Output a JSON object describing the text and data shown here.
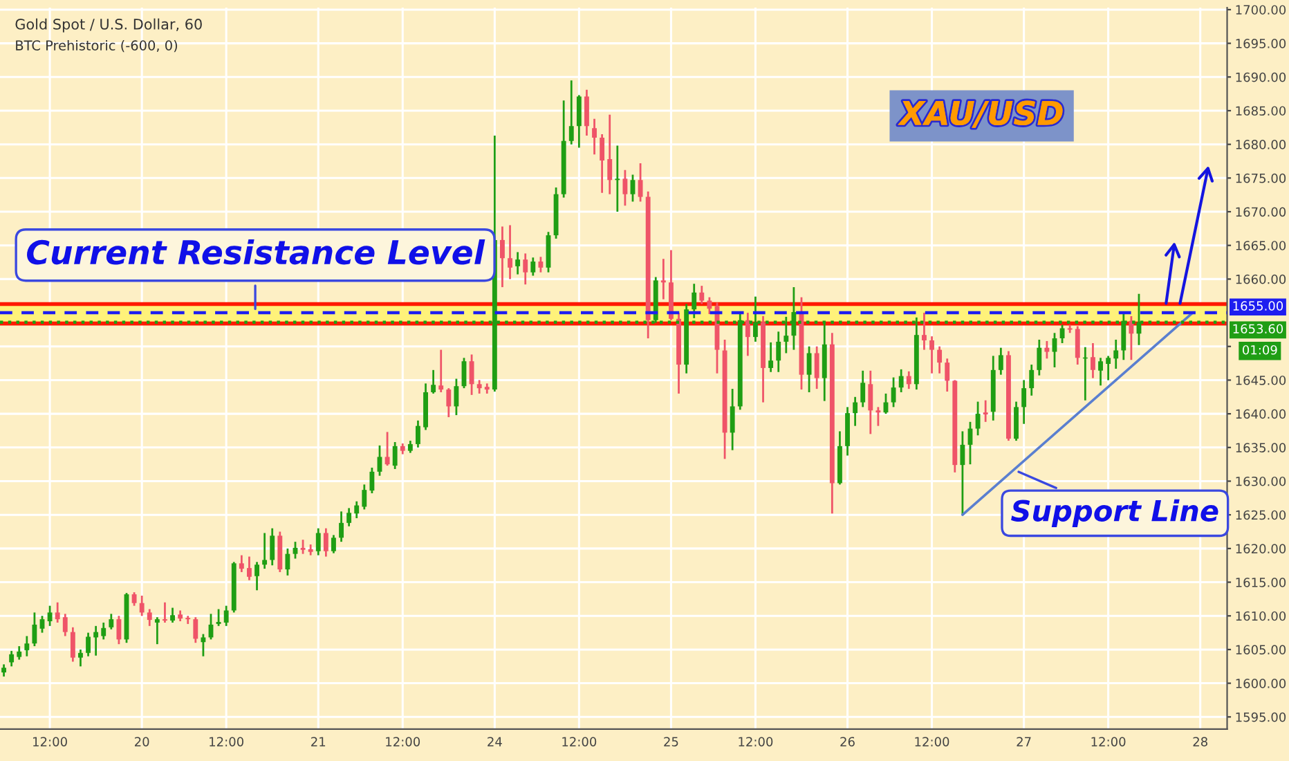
{
  "chart_data": {
    "type": "candlestick",
    "title": "Gold Spot / U.S. Dollar, 60",
    "subtitle": "BTC Prehistoric (-600, 0)",
    "categories": [
      null,
      null,
      null,
      null,
      null,
      null,
      "12:00",
      null,
      null,
      null,
      null,
      null,
      null,
      null,
      null,
      null,
      null,
      null,
      "20",
      null,
      null,
      null,
      null,
      null,
      null,
      null,
      null,
      null,
      null,
      "12:00",
      null,
      null,
      null,
      null,
      null,
      null,
      null,
      null,
      null,
      null,
      null,
      "21",
      null,
      null,
      null,
      null,
      null,
      null,
      null,
      null,
      null,
      null,
      "12:00",
      null,
      null,
      null,
      null,
      null,
      null,
      null,
      null,
      null,
      null,
      null,
      "24",
      null,
      null,
      null,
      null,
      null,
      null,
      null,
      null,
      null,
      null,
      "12:00",
      null,
      null,
      null,
      null,
      null,
      null,
      null,
      null,
      null,
      null,
      null,
      "25",
      null,
      null,
      null,
      null,
      null,
      null,
      null,
      null,
      null,
      null,
      "12:00",
      null,
      null,
      null,
      null,
      null,
      null,
      null,
      null,
      null,
      null,
      null,
      "26",
      null,
      null,
      null,
      null,
      null,
      null,
      null,
      null,
      null,
      null,
      "12:00",
      null,
      null,
      null,
      null,
      null,
      null,
      null,
      null,
      null,
      null,
      null,
      "27",
      null,
      null,
      null,
      null,
      null,
      null,
      null,
      null,
      null,
      null,
      "12:00",
      null,
      null,
      null,
      null,
      null,
      null,
      null,
      null,
      null,
      null,
      null,
      "28",
      null,
      null,
      null
    ],
    "ohlc": [
      [
        1601.6,
        1602.8,
        1601.0,
        1602.3
      ],
      [
        1603.1,
        1604.8,
        1602.5,
        1604.3
      ],
      [
        1603.9,
        1605.5,
        1603.5,
        1604.7
      ],
      [
        1604.9,
        1607.0,
        1604.0,
        1605.9
      ],
      [
        1605.9,
        1610.5,
        1605.5,
        1608.7
      ],
      [
        1608.1,
        1610.0,
        1607.5,
        1609.5
      ],
      [
        1609.2,
        1611.5,
        1608.5,
        1610.5
      ],
      [
        1610.5,
        1612.0,
        1609.0,
        1609.5
      ],
      [
        1609.8,
        1610.3,
        1607.0,
        1607.6
      ],
      [
        1607.6,
        1608.3,
        1603.2,
        1603.8
      ],
      [
        1603.8,
        1605.0,
        1602.5,
        1604.5
      ],
      [
        1604.5,
        1607.5,
        1604.0,
        1606.9
      ],
      [
        1606.8,
        1608.5,
        1604.1,
        1607.6
      ],
      [
        1607.0,
        1609.0,
        1606.5,
        1608.2
      ],
      [
        1608.3,
        1610.3,
        1608.0,
        1609.5
      ],
      [
        1609.5,
        1610.0,
        1605.8,
        1606.5
      ],
      [
        1606.5,
        1613.4,
        1606.0,
        1613.2
      ],
      [
        1613.2,
        1613.5,
        1611.5,
        1611.9
      ],
      [
        1611.9,
        1613.0,
        1610.0,
        1610.5
      ],
      [
        1610.5,
        1611.0,
        1608.5,
        1609.4
      ],
      [
        1609.0,
        1609.8,
        1605.8,
        1609.5
      ],
      [
        1609.5,
        1612.0,
        1609.0,
        1609.3
      ],
      [
        1609.3,
        1611.2,
        1609.0,
        1610.1
      ],
      [
        1610.2,
        1610.8,
        1609.2,
        1609.6
      ],
      [
        1609.7,
        1610.0,
        1608.8,
        1609.5
      ],
      [
        1609.5,
        1609.8,
        1606.0,
        1606.6
      ],
      [
        1606.1,
        1607.3,
        1604.0,
        1606.8
      ],
      [
        1606.8,
        1610.3,
        1606.5,
        1608.7
      ],
      [
        1608.8,
        1611.0,
        1608.5,
        1609.1
      ],
      [
        1609.0,
        1611.5,
        1608.5,
        1610.8
      ],
      [
        1610.8,
        1618.0,
        1610.5,
        1617.8
      ],
      [
        1617.8,
        1619.0,
        1616.5,
        1617.0
      ],
      [
        1617.1,
        1618.8,
        1615.3,
        1615.8
      ],
      [
        1615.9,
        1618.0,
        1613.8,
        1617.6
      ],
      [
        1617.6,
        1622.3,
        1617.0,
        1618.3
      ],
      [
        1618.3,
        1623.0,
        1617.5,
        1621.9
      ],
      [
        1621.9,
        1622.5,
        1616.5,
        1616.9
      ],
      [
        1616.9,
        1620.0,
        1616.0,
        1619.2
      ],
      [
        1619.2,
        1621.0,
        1618.5,
        1620.1
      ],
      [
        1620.1,
        1621.3,
        1619.2,
        1619.8
      ],
      [
        1619.9,
        1620.6,
        1619.0,
        1619.5
      ],
      [
        1619.6,
        1623.0,
        1619.0,
        1622.3
      ],
      [
        1622.3,
        1623.0,
        1618.8,
        1619.6
      ],
      [
        1619.6,
        1622.0,
        1619.3,
        1621.6
      ],
      [
        1621.6,
        1625.5,
        1621.0,
        1623.8
      ],
      [
        1623.8,
        1626.0,
        1623.3,
        1625.3
      ],
      [
        1625.2,
        1627.0,
        1624.5,
        1626.4
      ],
      [
        1626.2,
        1629.5,
        1625.8,
        1628.7
      ],
      [
        1628.6,
        1632.0,
        1628.2,
        1631.4
      ],
      [
        1631.4,
        1635.3,
        1630.8,
        1633.6
      ],
      [
        1633.6,
        1637.3,
        1632.3,
        1632.5
      ],
      [
        1632.3,
        1635.8,
        1631.8,
        1635.2
      ],
      [
        1635.2,
        1635.6,
        1634.0,
        1634.5
      ],
      [
        1634.5,
        1636.0,
        1634.2,
        1635.5
      ],
      [
        1635.5,
        1639.0,
        1635.0,
        1638.2
      ],
      [
        1638.0,
        1644.5,
        1637.6,
        1643.2
      ],
      [
        1643.2,
        1646.5,
        1643.0,
        1644.3
      ],
      [
        1644.2,
        1649.5,
        1643.2,
        1643.6
      ],
      [
        1643.6,
        1643.8,
        1639.5,
        1641.1
      ],
      [
        1641.1,
        1645.2,
        1639.8,
        1644.1
      ],
      [
        1644.1,
        1648.3,
        1643.8,
        1647.8
      ],
      [
        1647.8,
        1648.8,
        1642.8,
        1644.4
      ],
      [
        1644.4,
        1645.0,
        1643.0,
        1643.8
      ],
      [
        1644.0,
        1644.5,
        1643.0,
        1643.6
      ],
      [
        1643.6,
        1681.3,
        1643.3,
        1665.8
      ],
      [
        1665.8,
        1667.8,
        1658.8,
        1663.1
      ],
      [
        1663.1,
        1668.0,
        1660.0,
        1661.7
      ],
      [
        1661.9,
        1664.0,
        1660.7,
        1662.9
      ],
      [
        1662.9,
        1663.8,
        1659.2,
        1661.0
      ],
      [
        1661.0,
        1663.2,
        1660.5,
        1662.6
      ],
      [
        1662.6,
        1663.3,
        1661.0,
        1661.7
      ],
      [
        1661.7,
        1667.0,
        1661.0,
        1666.5
      ],
      [
        1666.5,
        1673.6,
        1666.0,
        1672.6
      ],
      [
        1672.6,
        1686.5,
        1672.1,
        1680.5
      ],
      [
        1680.5,
        1689.5,
        1680.0,
        1682.7
      ],
      [
        1682.7,
        1687.3,
        1679.5,
        1687.1
      ],
      [
        1687.1,
        1688.1,
        1681.3,
        1682.7
      ],
      [
        1682.4,
        1683.8,
        1678.5,
        1681.0
      ],
      [
        1681.0,
        1681.5,
        1672.8,
        1677.6
      ],
      [
        1677.8,
        1684.4,
        1672.6,
        1674.7
      ],
      [
        1674.7,
        1679.8,
        1670.0,
        1674.9
      ],
      [
        1674.9,
        1676.2,
        1670.9,
        1672.6
      ],
      [
        1672.6,
        1675.5,
        1671.5,
        1674.7
      ],
      [
        1674.7,
        1677.2,
        1671.5,
        1672.2
      ],
      [
        1672.2,
        1673.0,
        1651.2,
        1653.9
      ],
      [
        1653.9,
        1660.3,
        1653.5,
        1659.8
      ],
      [
        1659.8,
        1663.0,
        1657.0,
        1659.5
      ],
      [
        1659.5,
        1664.3,
        1653.9,
        1654.1
      ],
      [
        1654.1,
        1655.0,
        1643.0,
        1647.3
      ],
      [
        1647.3,
        1656.3,
        1646.0,
        1655.5
      ],
      [
        1655.5,
        1659.3,
        1654.2,
        1658.0
      ],
      [
        1658.0,
        1659.0,
        1656.3,
        1656.8
      ],
      [
        1656.8,
        1657.3,
        1654.8,
        1655.6
      ],
      [
        1656.0,
        1656.5,
        1646.0,
        1649.5
      ],
      [
        1649.4,
        1651.0,
        1633.3,
        1637.2
      ],
      [
        1637.2,
        1643.7,
        1634.6,
        1641.1
      ],
      [
        1641.1,
        1654.8,
        1640.6,
        1653.9
      ],
      [
        1653.9,
        1655.0,
        1648.6,
        1651.4
      ],
      [
        1651.4,
        1657.4,
        1650.7,
        1653.6
      ],
      [
        1653.6,
        1654.5,
        1641.7,
        1646.8
      ],
      [
        1646.8,
        1650.6,
        1646.2,
        1647.9
      ],
      [
        1647.9,
        1652.2,
        1646.2,
        1650.7
      ],
      [
        1650.7,
        1654.4,
        1649.0,
        1651.6
      ],
      [
        1651.6,
        1658.8,
        1649.5,
        1655.1
      ],
      [
        1655.1,
        1657.3,
        1643.6,
        1645.8
      ],
      [
        1645.8,
        1650.0,
        1643.2,
        1649.0
      ],
      [
        1649.0,
        1650.0,
        1643.7,
        1645.3
      ],
      [
        1645.3,
        1653.5,
        1641.9,
        1650.3
      ],
      [
        1650.3,
        1652.0,
        1625.2,
        1629.7
      ],
      [
        1629.7,
        1637.4,
        1629.5,
        1635.2
      ],
      [
        1635.2,
        1641.0,
        1633.8,
        1640.1
      ],
      [
        1640.1,
        1642.5,
        1638.2,
        1641.7
      ],
      [
        1641.7,
        1646.4,
        1641.0,
        1644.6
      ],
      [
        1644.4,
        1646.4,
        1637.0,
        1640.5
      ],
      [
        1640.5,
        1641.0,
        1638.2,
        1640.2
      ],
      [
        1640.2,
        1643.0,
        1640.0,
        1641.7
      ],
      [
        1641.7,
        1645.4,
        1641.0,
        1643.9
      ],
      [
        1643.9,
        1646.6,
        1643.2,
        1645.6
      ],
      [
        1645.6,
        1646.3,
        1643.7,
        1644.4
      ],
      [
        1644.4,
        1654.3,
        1643.6,
        1651.7
      ],
      [
        1651.7,
        1655.0,
        1649.5,
        1650.9
      ],
      [
        1650.9,
        1651.5,
        1646.0,
        1649.5
      ],
      [
        1649.5,
        1650.0,
        1646.0,
        1647.6
      ],
      [
        1647.6,
        1648.2,
        1643.3,
        1644.9
      ],
      [
        1644.9,
        1645.0,
        1631.3,
        1632.4
      ],
      [
        1632.4,
        1637.4,
        1625.0,
        1635.4
      ],
      [
        1635.4,
        1638.8,
        1632.5,
        1637.8
      ],
      [
        1637.8,
        1641.8,
        1636.8,
        1640.0
      ],
      [
        1640.2,
        1642.0,
        1638.8,
        1639.9
      ],
      [
        1640.3,
        1648.6,
        1639.0,
        1646.5
      ],
      [
        1646.5,
        1649.8,
        1645.8,
        1648.7
      ],
      [
        1648.7,
        1649.3,
        1636.0,
        1636.3
      ],
      [
        1636.3,
        1641.8,
        1636.0,
        1641.0
      ],
      [
        1641.0,
        1645.0,
        1638.5,
        1643.8
      ],
      [
        1643.8,
        1647.3,
        1642.7,
        1646.5
      ],
      [
        1646.5,
        1651.0,
        1645.7,
        1649.8
      ],
      [
        1649.8,
        1650.8,
        1648.2,
        1649.2
      ],
      [
        1649.2,
        1652.0,
        1646.9,
        1651.2
      ],
      [
        1651.2,
        1653.2,
        1650.5,
        1652.7
      ],
      [
        1652.7,
        1653.2,
        1652.0,
        1652.5
      ],
      [
        1652.6,
        1653.0,
        1647.3,
        1648.3
      ],
      [
        1648.2,
        1649.9,
        1642.0,
        1648.3
      ],
      [
        1648.4,
        1650.5,
        1645.3,
        1646.5
      ],
      [
        1646.4,
        1648.3,
        1644.2,
        1647.8
      ],
      [
        1647.4,
        1648.6,
        1645.0,
        1648.3
      ],
      [
        1648.2,
        1651.0,
        1646.7,
        1649.4
      ],
      [
        1649.4,
        1654.8,
        1648.0,
        1653.8
      ],
      [
        1653.8,
        1654.5,
        1648.0,
        1651.9
      ],
      [
        1651.9,
        1657.8,
        1650.2,
        1653.6
      ],
      null,
      null,
      null,
      null,
      null,
      null,
      null,
      null,
      null,
      null,
      null
    ],
    "colors": [
      "#1f9e14",
      "#1f9e14",
      "#1f9e14",
      "#1f9e14",
      "#1f9e14",
      "#1f9e14",
      "#1f9e14",
      "#ef5468",
      "#ef5468",
      "#ef5468",
      "#1f9e14",
      "#1f9e14",
      "#1f9e14",
      "#1f9e14",
      "#1f9e14",
      "#ef5468",
      "#1f9e14",
      "#ef5468",
      "#ef5468",
      "#ef5468",
      "#1f9e14",
      "#ef5468",
      "#1f9e14",
      "#ef5468",
      "#ef5468",
      "#ef5468",
      "#1f9e14",
      "#1f9e14",
      "#1f9e14",
      "#1f9e14",
      "#1f9e14",
      "#ef5468",
      "#ef5468",
      "#1f9e14",
      "#1f9e14",
      "#1f9e14",
      "#ef5468",
      "#1f9e14",
      "#1f9e14",
      "#ef5468",
      "#ef5468",
      "#1f9e14",
      "#ef5468",
      "#1f9e14",
      "#1f9e14",
      "#1f9e14",
      "#1f9e14",
      "#1f9e14",
      "#1f9e14",
      "#1f9e14",
      "#ef5468",
      "#1f9e14",
      "#ef5468",
      "#1f9e14",
      "#1f9e14",
      "#1f9e14",
      "#1f9e14",
      "#ef5468",
      "#ef5468",
      "#1f9e14",
      "#1f9e14",
      "#ef5468",
      "#ef5468",
      "#ef5468",
      "#1f9e14",
      "#ef5468",
      "#ef5468",
      "#1f9e14",
      "#ef5468",
      "#1f9e14",
      "#ef5468",
      "#1f9e14",
      "#1f9e14",
      "#1f9e14",
      "#1f9e14",
      "#1f9e14",
      "#ef5468",
      "#ef5468",
      "#ef5468",
      "#ef5468",
      "#1f9e14",
      "#ef5468",
      "#1f9e14",
      "#ef5468",
      "#ef5468",
      "#1f9e14",
      "#ef5468",
      "#ef5468",
      "#ef5468",
      "#1f9e14",
      "#1f9e14",
      "#ef5468",
      "#ef5468",
      "#ef5468",
      "#ef5468",
      "#1f9e14",
      "#1f9e14",
      "#ef5468",
      "#1f9e14",
      "#ef5468",
      "#1f9e14",
      "#1f9e14",
      "#1f9e14",
      "#1f9e14",
      "#ef5468",
      "#1f9e14",
      "#ef5468",
      "#1f9e14",
      "#ef5468",
      "#1f9e14",
      "#1f9e14",
      "#1f9e14",
      "#1f9e14",
      "#ef5468",
      "#ef5468",
      "#1f9e14",
      "#1f9e14",
      "#1f9e14",
      "#ef5468",
      "#1f9e14",
      "#ef5468",
      "#ef5468",
      "#ef5468",
      "#ef5468",
      "#ef5468",
      "#1f9e14",
      "#1f9e14",
      "#1f9e14",
      "#ef5468",
      "#1f9e14",
      "#1f9e14",
      "#ef5468",
      "#1f9e14",
      "#1f9e14",
      "#1f9e14",
      "#1f9e14",
      "#ef5468",
      "#1f9e14",
      "#1f9e14",
      "#ef5468",
      "#ef5468",
      "#1f9e14",
      "#ef5468",
      "#1f9e14",
      "#1f9e14",
      "#1f9e14",
      "#1f9e14",
      "#ef5468",
      "#1f9e14",
      null,
      null,
      null,
      null,
      null,
      null,
      null,
      null,
      null,
      null,
      null
    ],
    "series": [
      {
        "type": "line",
        "color": "#5a7fd0",
        "values": [
          null,
          null,
          null,
          null,
          null,
          null,
          null,
          null,
          null,
          null,
          null,
          null,
          null,
          null,
          null,
          null,
          null,
          null,
          null,
          null,
          null,
          null,
          null,
          null,
          null,
          null,
          null,
          null,
          null,
          null,
          null,
          null,
          null,
          null,
          null,
          null,
          null,
          null,
          null,
          null,
          null,
          null,
          null,
          null,
          null,
          null,
          null,
          null,
          null,
          null,
          null,
          null,
          null,
          null,
          null,
          null,
          null,
          null,
          null,
          null,
          null,
          null,
          null,
          null,
          null,
          null,
          null,
          null,
          null,
          null,
          null,
          null,
          null,
          null,
          null,
          null,
          null,
          null,
          null,
          null,
          null,
          null,
          null,
          null,
          null,
          null,
          null,
          null,
          null,
          null,
          null,
          null,
          null,
          null,
          null,
          null,
          null,
          null,
          null,
          null,
          null,
          null,
          null,
          null,
          null,
          null,
          null,
          null,
          null,
          null,
          null,
          null,
          null,
          null,
          null,
          null,
          null,
          null,
          null,
          null,
          null,
          null,
          null,
          null,
          null,
          1625,
          null,
          null,
          null,
          null,
          null,
          null,
          null,
          null,
          null,
          null,
          null,
          null,
          null,
          null,
          null,
          null,
          null,
          null,
          null,
          null,
          null,
          null,
          null,
          null,
          null,
          null,
          null,
          null,
          null,
          1655,
          null,
          null,
          null,
          null
        ]
      }
    ],
    "ylim": [
      1593.2,
      1700.3
    ],
    "yticks": [
      {
        "value": 1595,
        "label": "1595.00"
      },
      {
        "value": 1600,
        "label": "1600.00"
      },
      {
        "value": 1605,
        "label": "1605.00"
      },
      {
        "value": 1610,
        "label": "1610.00"
      },
      {
        "value": 1615,
        "label": "1615.00"
      },
      {
        "value": 1620,
        "label": "1620.00"
      },
      {
        "value": 1625,
        "label": "1625.00"
      },
      {
        "value": 1630,
        "label": "1630.00"
      },
      {
        "value": 1635,
        "label": "1635.00"
      },
      {
        "value": 1640,
        "label": "1640.00"
      },
      {
        "value": 1645,
        "label": "1645.00"
      },
      {
        "value": 1650,
        "label": null
      },
      {
        "value": 1660,
        "label": "1660.00"
      },
      {
        "value": 1665,
        "label": "1665.00"
      },
      {
        "value": 1670,
        "label": "1670.00"
      },
      {
        "value": 1675,
        "label": "1675.00"
      },
      {
        "value": 1680,
        "label": "1680.00"
      },
      {
        "value": 1685,
        "label": "1685.00"
      },
      {
        "value": 1690,
        "label": "1690.00"
      },
      {
        "value": 1695,
        "label": "1695.00"
      },
      {
        "value": 1700,
        "label": "1700.00"
      }
    ],
    "grid": true,
    "bands": [
      {
        "axis": "y",
        "from": 1653.4,
        "to": 1656.3,
        "color": "#fff27a"
      }
    ],
    "ref_lines": [
      {
        "axis": "y",
        "value": 1656.3,
        "color": "#ff1a00",
        "line_style": "solid"
      },
      {
        "axis": "y",
        "value": 1653.4,
        "color": "#ff1a00",
        "line_style": "solid"
      },
      {
        "axis": "y",
        "value": 1655,
        "label": "1655.00",
        "color": "#1e1ef0",
        "line_style": "dashed"
      },
      {
        "axis": "y",
        "value": 1653.6,
        "label": "1653.60",
        "color": "#1f9e14",
        "line_style": "dotted"
      }
    ],
    "annotations": [
      "XAU/USD",
      "01:09",
      "Support Line",
      {
        "text": "Current Resistance Level",
        "y": 1655
      }
    ]
  }
}
